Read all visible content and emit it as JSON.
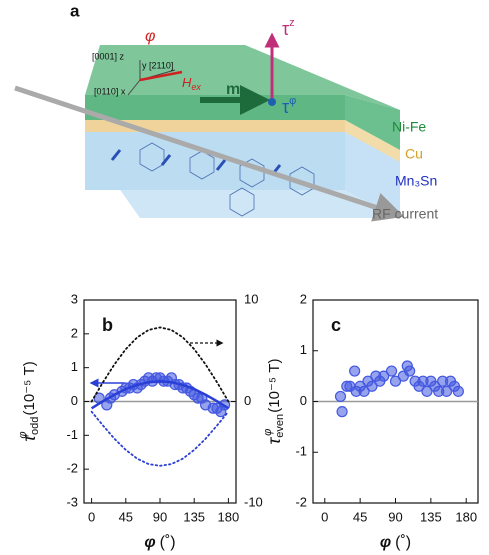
{
  "schematic": {
    "panel_label": "a",
    "z_axis": "[0001] z",
    "y_axis": "y [2110]",
    "x_axis": "[0110] x",
    "phi": "φ",
    "h_ex": "H",
    "h_ex_sub": "ex",
    "m": "m",
    "tau_z": "τ",
    "tau_z_sup": "z",
    "tau_phi": "τ",
    "tau_phi_sup": "φ",
    "layer_top": "Ni-Fe",
    "layer_mid": "Cu",
    "layer_bottom": "Mn₃Sn",
    "current": "RF current"
  },
  "chart_data": [
    {
      "type": "scatter",
      "panel_label": "b",
      "xlabel": {
        "symbol": "φ",
        "unit": "(˚)"
      },
      "ylabel": {
        "symbol": "τ",
        "sup": "φ",
        "sub": "odd",
        "unit": "(10⁻⁵ T)"
      },
      "xlim": [
        -10,
        190
      ],
      "xticks": [
        0,
        45,
        90,
        135,
        180
      ],
      "ylim": [
        -3,
        3
      ],
      "yticks": [
        -3,
        -2,
        -1,
        0,
        1,
        2,
        3
      ],
      "y2lim": [
        -10,
        10
      ],
      "y2ticks": [
        -10,
        0,
        10
      ],
      "series": [
        {
          "mode": "markers",
          "color": "#4458e0",
          "x": [
            10,
            20,
            25,
            30,
            40,
            45,
            50,
            55,
            60,
            65,
            70,
            75,
            80,
            85,
            90,
            95,
            100,
            105,
            110,
            115,
            120,
            125,
            130,
            135,
            140,
            145,
            150,
            160,
            165,
            170,
            175
          ],
          "values": [
            0.1,
            -0.1,
            0.1,
            0.2,
            0.3,
            0.4,
            0.4,
            0.5,
            0.4,
            0.5,
            0.6,
            0.7,
            0.6,
            0.7,
            0.7,
            0.6,
            0.6,
            0.7,
            0.5,
            0.5,
            0.4,
            0.4,
            0.3,
            0.2,
            0.1,
            0.1,
            -0.1,
            -0.2,
            -0.2,
            -0.3,
            -0.1
          ]
        },
        {
          "mode": "line",
          "color": "#2a3fd6",
          "x": [
            0,
            15,
            30,
            45,
            60,
            75,
            90,
            105,
            120,
            135,
            150,
            165,
            180
          ],
          "values": [
            -0.2,
            0.01,
            0.2,
            0.37,
            0.49,
            0.57,
            0.6,
            0.57,
            0.49,
            0.37,
            0.2,
            0.01,
            -0.2
          ]
        },
        {
          "mode": "dotted",
          "color": "#2a3fd6",
          "x": [
            0,
            15,
            30,
            45,
            60,
            75,
            90,
            105,
            120,
            135,
            150,
            165,
            180
          ],
          "values": [
            -0.3,
            -0.71,
            -1.1,
            -1.43,
            -1.69,
            -1.85,
            -1.9,
            -1.85,
            -1.69,
            -1.43,
            -1.1,
            -0.71,
            -0.3
          ]
        },
        {
          "mode": "dotted",
          "color": "#111111",
          "axis": "y2",
          "x": [
            0,
            15,
            30,
            45,
            60,
            75,
            90,
            105,
            120,
            135,
            150,
            165,
            180
          ],
          "values": [
            0,
            1.9,
            3.65,
            5.16,
            6.32,
            7.05,
            7.3,
            7.05,
            6.32,
            5.16,
            3.65,
            1.9,
            0
          ]
        }
      ]
    },
    {
      "type": "scatter",
      "panel_label": "c",
      "xlabel": {
        "symbol": "φ",
        "unit": "(˚)"
      },
      "ylabel": {
        "symbol": "τ",
        "sup": "φ",
        "sub": "even",
        "unit": "(10⁻⁵ T)"
      },
      "xlim": [
        -15,
        195
      ],
      "xticks": [
        0,
        45,
        90,
        135,
        180
      ],
      "ylim": [
        -2,
        2
      ],
      "yticks": [
        -2,
        -1,
        0,
        1,
        2
      ],
      "series": [
        {
          "mode": "markers",
          "color": "#4458e0",
          "x": [
            20,
            22,
            28,
            32,
            38,
            40,
            45,
            50,
            55,
            60,
            65,
            70,
            75,
            85,
            90,
            100,
            105,
            108,
            115,
            120,
            125,
            130,
            135,
            140,
            145,
            150,
            155,
            160,
            165,
            170
          ],
          "values": [
            0.1,
            -0.2,
            0.3,
            0.3,
            0.6,
            0.2,
            0.3,
            0.2,
            0.4,
            0.3,
            0.5,
            0.4,
            0.5,
            0.6,
            0.4,
            0.5,
            0.7,
            0.6,
            0.4,
            0.3,
            0.4,
            0.2,
            0.4,
            0.3,
            0.2,
            0.4,
            0.2,
            0.4,
            0.3,
            0.2
          ]
        }
      ]
    }
  ]
}
